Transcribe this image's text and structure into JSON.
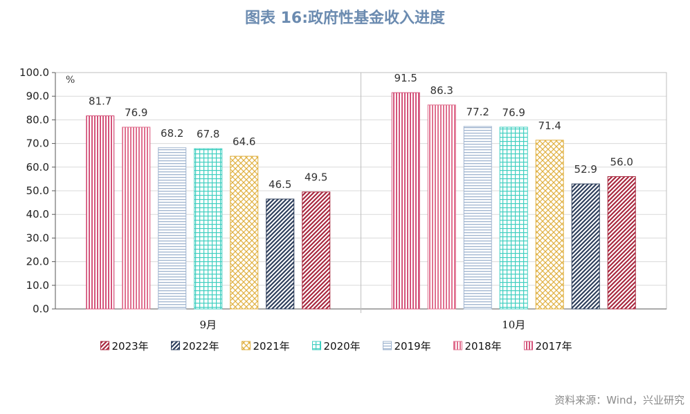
{
  "title": "图表 16:政府性基金收入进度",
  "source": "资料来源：Wind，兴业研究",
  "chart_data": {
    "type": "bar",
    "unit_label": "%",
    "categories": [
      "9月",
      "10月"
    ],
    "ylim": [
      0,
      100
    ],
    "yticks": [
      "0.0",
      "10.0",
      "20.0",
      "30.0",
      "40.0",
      "50.0",
      "60.0",
      "70.0",
      "80.0",
      "90.0",
      "100.0"
    ],
    "legend_position": "bottom",
    "grid": true,
    "series": [
      {
        "name": "2023年",
        "values": [
          81.7,
          91.5
        ],
        "labels": [
          "81.7",
          "91.5"
        ],
        "color": "#d4537a",
        "pattern": "vert",
        "bar_order": 0
      },
      {
        "name": "2022年",
        "values": [
          76.9,
          86.3
        ],
        "labels": [
          "76.9",
          "86.3"
        ],
        "color": "#e0708f",
        "pattern": "vert",
        "bar_order": 1
      },
      {
        "name": "2021年",
        "values": [
          68.2,
          77.2
        ],
        "labels": [
          "68.2",
          "77.2"
        ],
        "color": "#9fb4cf",
        "pattern": "horiz",
        "bar_order": 2
      },
      {
        "name": "2020年",
        "values": [
          67.8,
          76.9
        ],
        "labels": [
          "67.8",
          "76.9"
        ],
        "color": "#3fcfc0",
        "pattern": "grid",
        "bar_order": 3
      },
      {
        "name": "2019年",
        "values": [
          64.6,
          71.4
        ],
        "labels": [
          "64.6",
          "71.4"
        ],
        "color": "#e0b040",
        "pattern": "cross",
        "bar_order": 4
      },
      {
        "name": "2018年",
        "values": [
          46.5,
          52.9
        ],
        "labels": [
          "46.5",
          "52.9"
        ],
        "color": "#2e3f5c",
        "pattern": "diag",
        "bar_order": 5
      },
      {
        "name": "2017年",
        "values": [
          49.5,
          56.0
        ],
        "labels": [
          "49.5",
          "56.0"
        ],
        "color": "#a8283f",
        "pattern": "diag",
        "bar_order": 6
      }
    ],
    "legend": [
      {
        "name": "2023年",
        "color": "#a8283f",
        "pattern": "diag"
      },
      {
        "name": "2022年",
        "color": "#2e3f5c",
        "pattern": "diag"
      },
      {
        "name": "2021年",
        "color": "#e0b040",
        "pattern": "cross"
      },
      {
        "name": "2020年",
        "color": "#3fcfc0",
        "pattern": "grid"
      },
      {
        "name": "2019年",
        "color": "#9fb4cf",
        "pattern": "horiz"
      },
      {
        "name": "2018年",
        "color": "#e0708f",
        "pattern": "vert"
      },
      {
        "name": "2017年",
        "color": "#d4537a",
        "pattern": "vert"
      }
    ]
  }
}
